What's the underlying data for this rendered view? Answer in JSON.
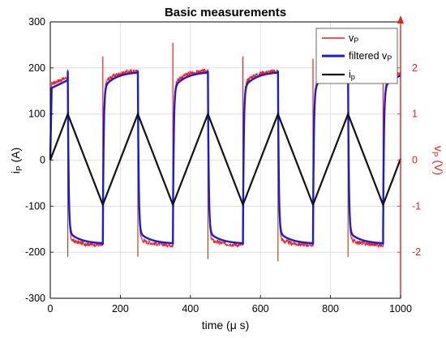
{
  "chart_data": {
    "type": "line",
    "title": "Basic measurements",
    "xlabel": "time (μ s)",
    "ylabel_left": "i_P (A)",
    "ylabel_right": "v_P (V)",
    "xlim": [
      0,
      1000
    ],
    "ylim_left": [
      -300,
      300
    ],
    "ylim_right": [
      -3,
      3
    ],
    "x_ticks": [
      "0",
      "200",
      "400",
      "600",
      "800",
      "1000"
    ],
    "y_ticks_left": [
      "300",
      "200",
      "100",
      "0",
      "-100",
      "-200",
      "-300"
    ],
    "y_ticks_right": [
      "2",
      "1",
      "0",
      "-1",
      "-2"
    ],
    "grid": true,
    "legend_position": "top-right",
    "legend": [
      "v_P",
      "filtered v_P",
      "i_p"
    ],
    "colors": {
      "vp": "#ff1a1a",
      "filtered_vp": "#1a1adf",
      "ip": "#111111",
      "right_axis": "#e8221c",
      "grid": "#d9d9d9"
    },
    "series": [
      {
        "name": "i_p",
        "axis": "left",
        "x": [
          0,
          50,
          150,
          250,
          350,
          450,
          550,
          650,
          750,
          850,
          950,
          1000
        ],
        "values": [
          0,
          100,
          -97,
          100,
          -97,
          100,
          -97,
          100,
          -97,
          100,
          -97,
          3
        ]
      },
      {
        "name": "filtered v_P",
        "axis": "right",
        "switch_times": [
          50,
          150,
          250,
          350,
          450,
          550,
          650,
          750,
          850,
          950
        ],
        "high_level_start": 1.55,
        "high_level_end": 1.92,
        "low_level_start": -1.55,
        "low_level_end": -1.82
      },
      {
        "name": "v_P",
        "axis": "right",
        "switch_times": [
          50,
          150,
          250,
          350,
          450,
          550,
          650,
          750,
          850,
          950
        ],
        "high_level_start": 1.65,
        "high_level_end": 1.95,
        "low_level_start": -1.7,
        "low_level_end": -1.85,
        "spikes": [
          2.25,
          2.55,
          2.25,
          2.2,
          2.0,
          2.0
        ],
        "dips": [
          -2.1,
          -2.1,
          -2.15,
          -2.2,
          -2.1
        ]
      }
    ]
  }
}
